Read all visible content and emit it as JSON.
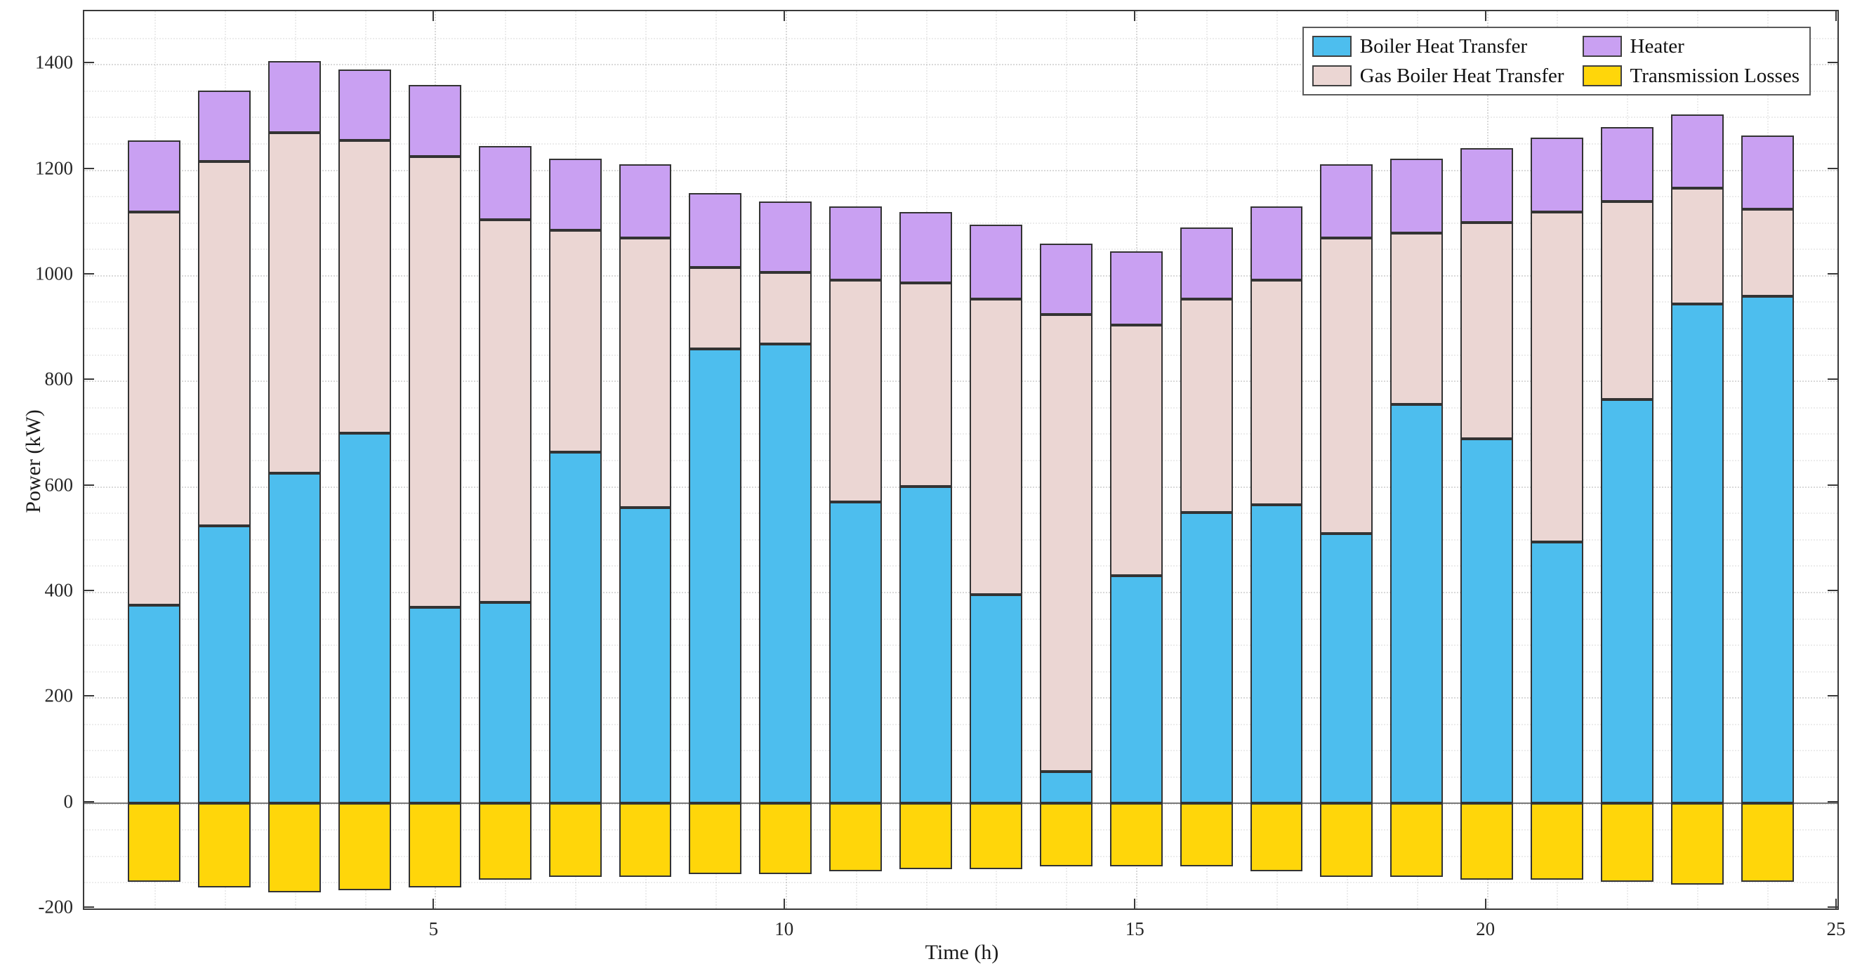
{
  "axes": {
    "xlabel": "Time (h)",
    "ylabel": "Power (kW)",
    "xlim": [
      0,
      25
    ],
    "ylim": [
      -200,
      1500
    ],
    "xticks": [
      5,
      10,
      15,
      20,
      25
    ],
    "yticks": [
      -200,
      0,
      200,
      400,
      600,
      800,
      1000,
      1200,
      1400
    ],
    "minor_y_step": 50,
    "minor_x_step": 1,
    "grid": true,
    "tick_direction": "in"
  },
  "legend": {
    "position": "top-right",
    "columns": 2,
    "items": [
      {
        "label": "Boiler Heat Transfer",
        "color": "#4DBEEE"
      },
      {
        "label": "Gas Boiler Heat Transfer",
        "color": "#EBD6D3"
      },
      {
        "label": "Heater",
        "color": "#C9A0F2"
      },
      {
        "label": "Transmission Losses",
        "color": "#FFD60A"
      }
    ]
  },
  "chart_data": {
    "type": "bar",
    "stacked": true,
    "bar_width": 0.75,
    "edge_color": "#333333",
    "title": "",
    "xlabel": "Time (h)",
    "ylabel": "Power (kW)",
    "x": [
      1,
      2,
      3,
      4,
      5,
      6,
      7,
      8,
      9,
      10,
      11,
      12,
      13,
      14,
      15,
      16,
      17,
      18,
      19,
      20,
      21,
      22,
      23,
      24
    ],
    "series": [
      {
        "name": "Boiler Heat Transfer",
        "color": "#4DBEEE",
        "values": [
          375,
          525,
          625,
          700,
          370,
          380,
          665,
          560,
          860,
          870,
          570,
          600,
          395,
          60,
          430,
          550,
          565,
          510,
          755,
          690,
          495,
          765,
          945,
          960
        ]
      },
      {
        "name": "Gas Boiler Heat Transfer",
        "color": "#EBD6D3",
        "values": [
          745,
          690,
          645,
          555,
          855,
          725,
          420,
          510,
          155,
          135,
          420,
          385,
          560,
          865,
          475,
          405,
          425,
          560,
          325,
          410,
          625,
          375,
          220,
          165
        ]
      },
      {
        "name": "Heater",
        "color": "#C9A0F2",
        "values": [
          135,
          135,
          135,
          135,
          135,
          140,
          135,
          140,
          140,
          135,
          140,
          135,
          140,
          135,
          140,
          135,
          140,
          140,
          140,
          140,
          140,
          140,
          140,
          140
        ]
      },
      {
        "name": "Transmission Losses",
        "color": "#FFD60A",
        "values": [
          -150,
          -160,
          -170,
          -165,
          -160,
          -145,
          -140,
          -140,
          -135,
          -135,
          -130,
          -125,
          -125,
          -120,
          -120,
          -120,
          -130,
          -140,
          -140,
          -145,
          -145,
          -150,
          -155,
          -150
        ]
      }
    ]
  }
}
